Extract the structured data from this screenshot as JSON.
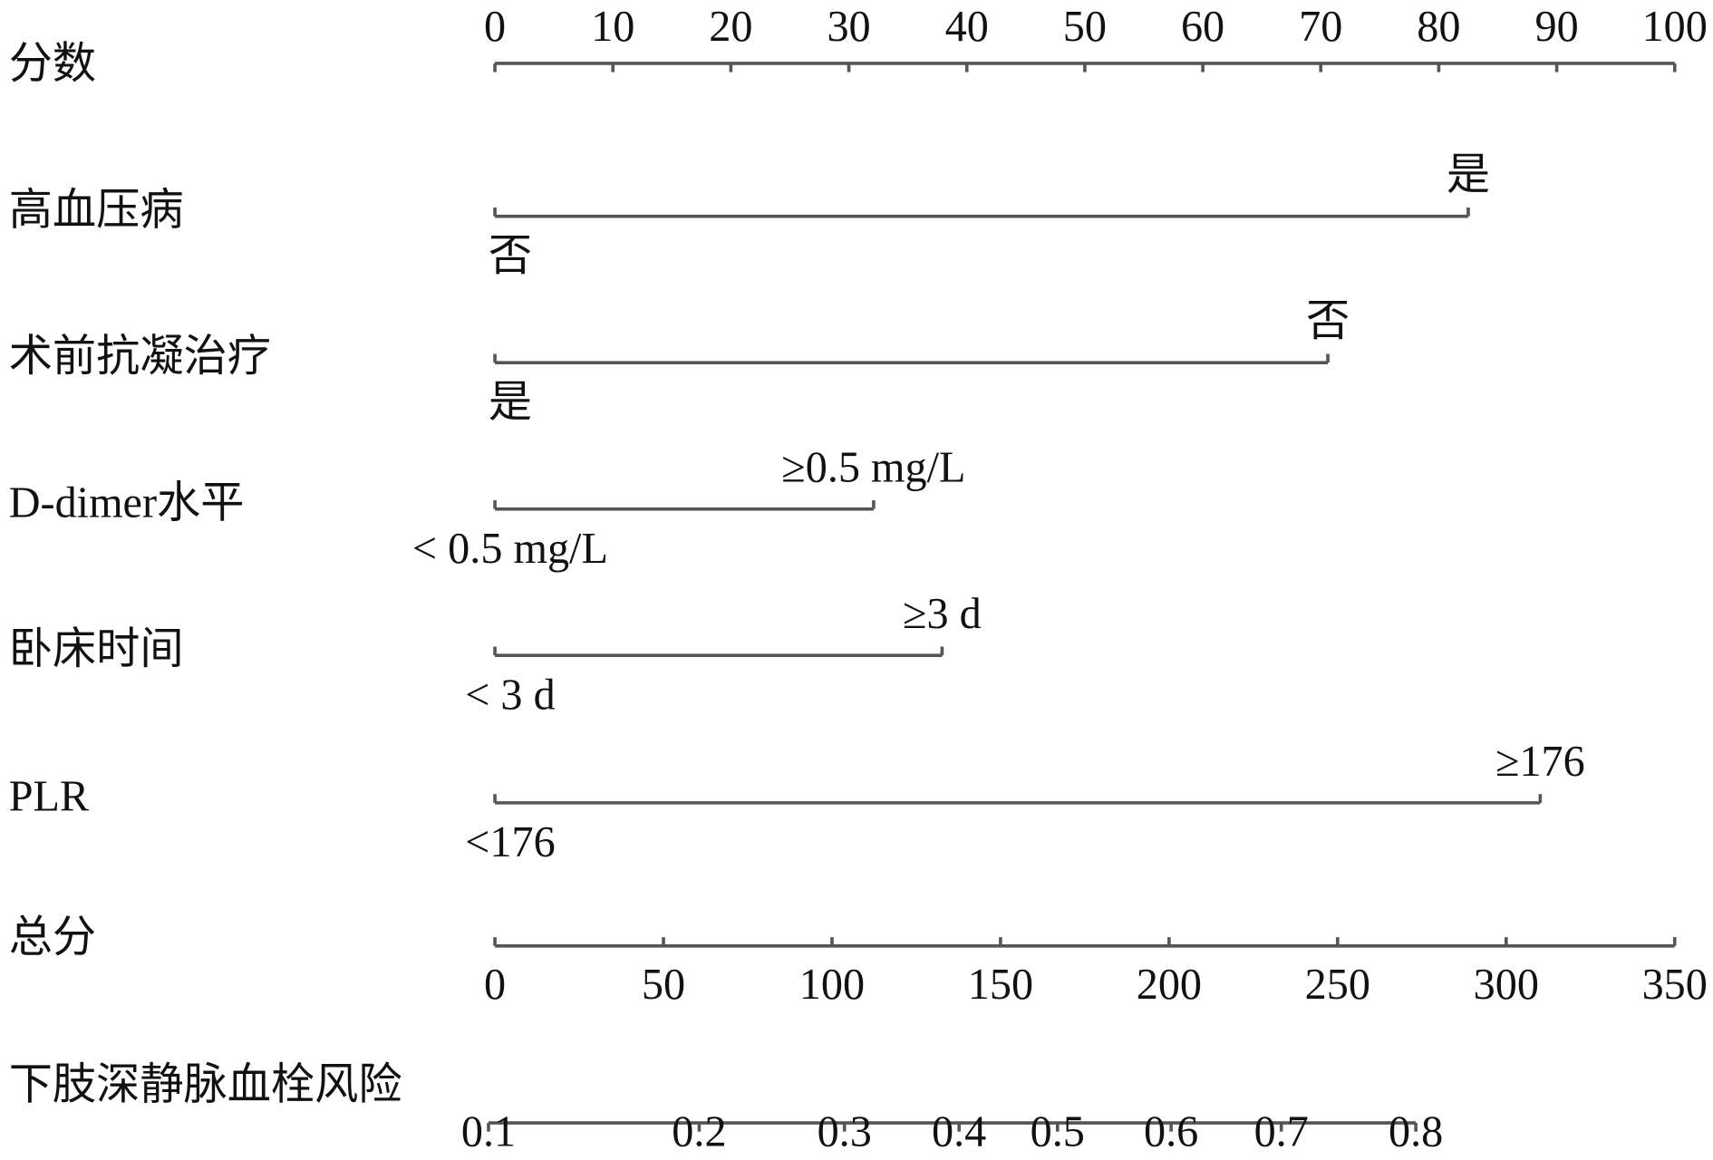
{
  "chart_data": {
    "type": "nomogram",
    "points_axis": {
      "label": "分数",
      "xlim": [
        0,
        100
      ],
      "xticks": [
        0,
        10,
        20,
        30,
        40,
        50,
        60,
        70,
        80,
        90,
        100
      ]
    },
    "variables": [
      {
        "label": "高血压病",
        "levels": [
          {
            "label": "否",
            "points": 0
          },
          {
            "label": "是",
            "points": 82.5
          }
        ]
      },
      {
        "label": "术前抗凝治疗",
        "levels": [
          {
            "label": "是",
            "points": 0
          },
          {
            "label": "否",
            "points": 70.6
          }
        ]
      },
      {
        "label": "D-dimer水平",
        "levels": [
          {
            "label": "< 0.5 mg/L",
            "points": 0
          },
          {
            "label": "≥0.5 mg/L",
            "points": 32.1
          }
        ]
      },
      {
        "label": "卧床时间",
        "levels": [
          {
            "label": "< 3 d",
            "points": 0
          },
          {
            "label": "≥3 d",
            "points": 37.9
          }
        ]
      },
      {
        "label": "PLR",
        "levels": [
          {
            "label": "<176",
            "points": 0
          },
          {
            "label": "≥176",
            "points": 88.6
          }
        ]
      }
    ],
    "total_axis": {
      "label": "总分",
      "xlim": [
        0,
        350
      ],
      "xticks": [
        0,
        50,
        100,
        150,
        200,
        250,
        300,
        350
      ]
    },
    "risk_axis": {
      "label": "下肢深静脉血栓风险",
      "ticks": [
        0.1,
        0.2,
        0.3,
        0.4,
        0.5,
        0.6,
        0.7,
        0.8
      ],
      "tick_points": [
        -1.9,
        60.6,
        103.7,
        137.7,
        166.9,
        200.6,
        233.3,
        273.2
      ]
    },
    "color": "#555555"
  }
}
